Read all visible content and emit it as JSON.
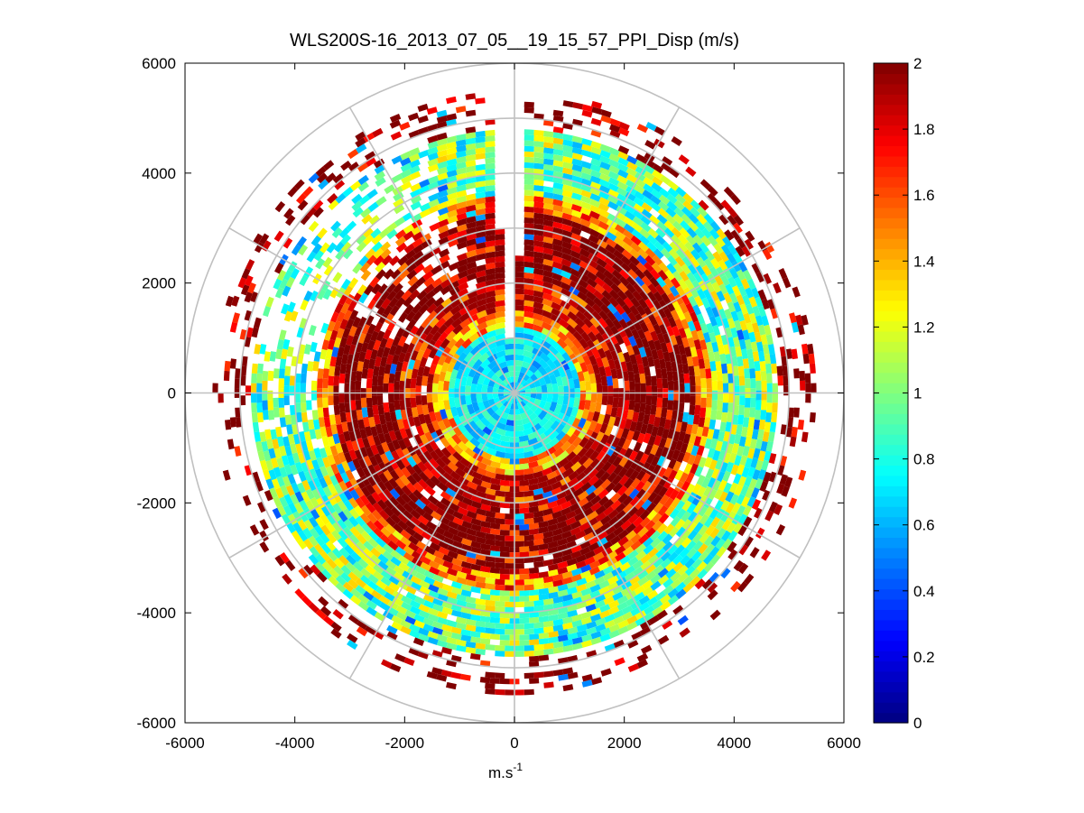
{
  "chart_data": {
    "type": "heatmap",
    "subtype": "polar-ppi",
    "title": "WLS200S-16_2013_07_05__19_15_57_PPI_Disp (m/s)",
    "xlabel_base": "m.s",
    "xlabel_sup": "-1",
    "ylabel": "",
    "xlim": [
      -6000,
      6000
    ],
    "ylim": [
      -6000,
      6000
    ],
    "xticks": [
      -6000,
      -4000,
      -2000,
      0,
      2000,
      4000,
      6000
    ],
    "yticks": [
      6000,
      4000,
      2000,
      0,
      -2000,
      -4000,
      -6000
    ],
    "xtick_labels": [
      "-6000",
      "-4000",
      "-2000",
      "0",
      "2000",
      "4000",
      "6000"
    ],
    "ytick_labels": [
      "6000",
      "4000",
      "2000",
      "0",
      "-2000",
      "-4000",
      "-6000"
    ],
    "range_rings": [
      1000,
      2000,
      3000,
      4000,
      5000,
      6000
    ],
    "spoke_angles_deg": [
      0,
      30,
      60,
      90,
      120,
      150,
      180,
      210,
      240,
      270,
      300,
      330
    ],
    "colorbar": {
      "colormap": "jet",
      "clim": [
        0,
        2
      ],
      "ticks": [
        0,
        0.2,
        0.4,
        0.6,
        0.8,
        1,
        1.2,
        1.4,
        1.6,
        1.8,
        2
      ],
      "tick_labels": [
        "0",
        "0.2",
        "0.4",
        "0.6",
        "0.8",
        "1",
        "1.2",
        "1.4",
        "1.6",
        "1.8",
        "2"
      ]
    },
    "field_structure": {
      "gap_sector_deg": [
        -5,
        2
      ],
      "zones": [
        {
          "r_min": 0,
          "r_max": 1200,
          "typical_value": 0.7,
          "description": "low dispersion core"
        },
        {
          "r_min": 1200,
          "r_max": 1500,
          "typical_value": 1.4,
          "description": "transition ring"
        },
        {
          "r_min": 1500,
          "r_max": 3500,
          "typical_value": 1.9,
          "description": "high dispersion band"
        },
        {
          "r_min": 3500,
          "r_max": 4800,
          "typical_value": 0.9,
          "description": "moderate outer band"
        },
        {
          "r_min": 4800,
          "r_max": 5500,
          "typical_value": 2.0,
          "description": "sparse high values"
        }
      ]
    }
  }
}
